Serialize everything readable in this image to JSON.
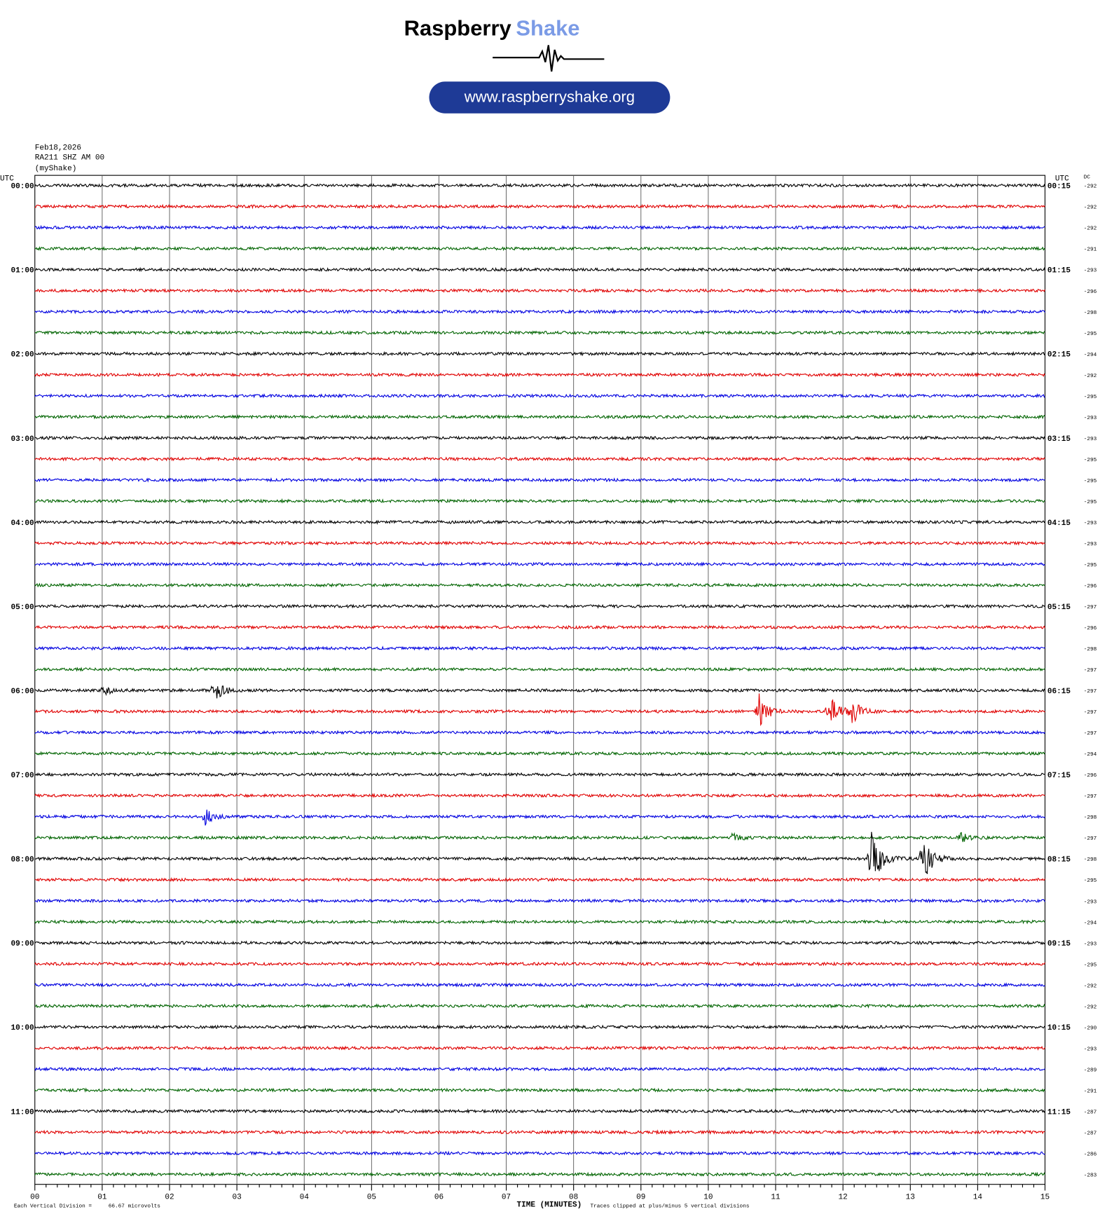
{
  "logo": {
    "brand": "Raspberry",
    "brand_accent": "Shake",
    "url": "www.raspberryshake.org"
  },
  "header": {
    "date": "Feb18,2026",
    "station": "RA211 SHZ AM 00",
    "source": "(myShake)"
  },
  "left_axis": {
    "title": "UTC",
    "labels": [
      "00:00",
      "01:00",
      "02:00",
      "03:00",
      "04:00",
      "05:00",
      "06:00",
      "07:00",
      "08:00",
      "09:00",
      "10:00",
      "11:00"
    ]
  },
  "right_axis": {
    "title": "UTC",
    "labels": [
      "00:15",
      "01:15",
      "02:15",
      "03:15",
      "04:15",
      "05:15",
      "06:15",
      "07:15",
      "08:15",
      "09:15",
      "10:15",
      "11:15"
    ]
  },
  "dc": {
    "title": "DC",
    "values": [
      -292,
      -292,
      -292,
      -291,
      -293,
      -296,
      -298,
      -295,
      -294,
      -292,
      -295,
      -293,
      -293,
      -295,
      -295,
      -295,
      -293,
      -293,
      -295,
      -296,
      -297,
      -296,
      -298,
      -297,
      -297,
      -297,
      -297,
      -294,
      -296,
      -297,
      -298,
      -297,
      -298,
      -295,
      -293,
      -294,
      -293,
      -295,
      -292,
      -292,
      -290,
      -293,
      -289,
      -291,
      -287,
      -287,
      -286,
      -283
    ]
  },
  "x_axis": {
    "title": "TIME (MINUTES)",
    "ticks": [
      "00",
      "01",
      "02",
      "03",
      "04",
      "05",
      "06",
      "07",
      "08",
      "09",
      "10",
      "11",
      "12",
      "13",
      "14",
      "15"
    ]
  },
  "footer": {
    "division": "Each Vertical Division =",
    "division_value": "66.67 microvolts",
    "clip_note": "Traces clipped at plus/minus 5 vertical divisions"
  }
}
